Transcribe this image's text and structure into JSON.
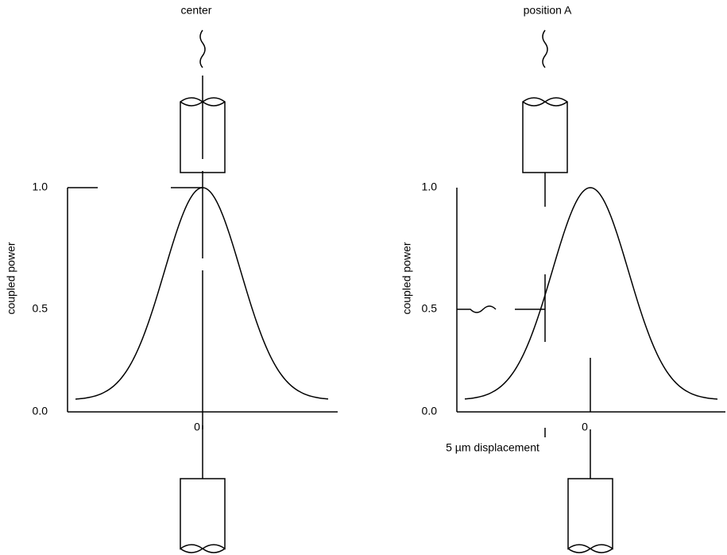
{
  "panels": [
    {
      "title": "center",
      "y_axis_label": "coupled power",
      "y_tick_labels": [
        "1.0",
        "0.5",
        "0.0"
      ],
      "x_tick_label": "0"
    },
    {
      "title": "position A",
      "y_axis_label": "coupled power",
      "y_tick_labels": [
        "1.0",
        "0.5",
        "0.0"
      ],
      "x_tick_label": "0",
      "annotation": "5 µm displacement"
    }
  ]
}
